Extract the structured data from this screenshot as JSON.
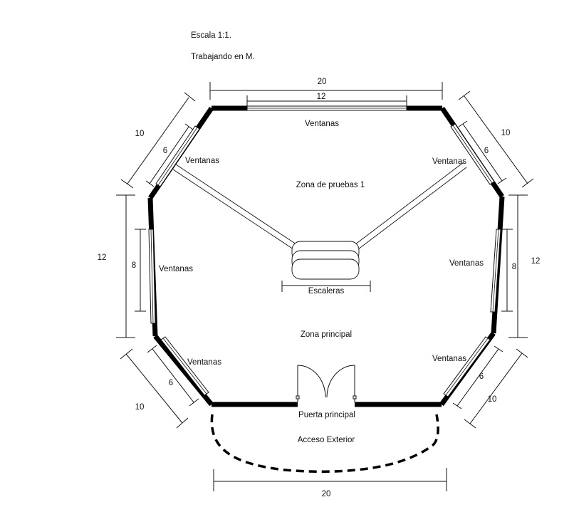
{
  "notes": {
    "scale": "Escala 1:1.",
    "units": "Trabajando en M."
  },
  "labels": {
    "window_top": "Ventanas",
    "window_upper_left": "Ventanas",
    "window_upper_right": "Ventanas",
    "window_left": "Ventanas",
    "window_right": "Ventanas",
    "window_lower_left": "Ventanas",
    "window_lower_right": "Ventanas",
    "test_zone": "Zona de pruebas 1",
    "main_zone": "Zona principal",
    "stairs": "Escaleras",
    "main_door": "Puerta principal",
    "exterior_access": "Acceso Exterior"
  },
  "dimensions": {
    "top_wall": "20",
    "top_window": "12",
    "upper_left_wall": "10",
    "upper_left_window": "6",
    "upper_right_wall": "10",
    "upper_right_window": "6",
    "left_wall": "12",
    "left_window": "8",
    "right_wall": "12",
    "right_window": "8",
    "lower_left_wall": "10",
    "lower_left_window": "6",
    "lower_right_wall": "10",
    "lower_right_window": "6",
    "bottom_wall": "20"
  },
  "colors": {
    "wall": "#000000",
    "line": "#111111",
    "window_fill": "#ffffff"
  }
}
